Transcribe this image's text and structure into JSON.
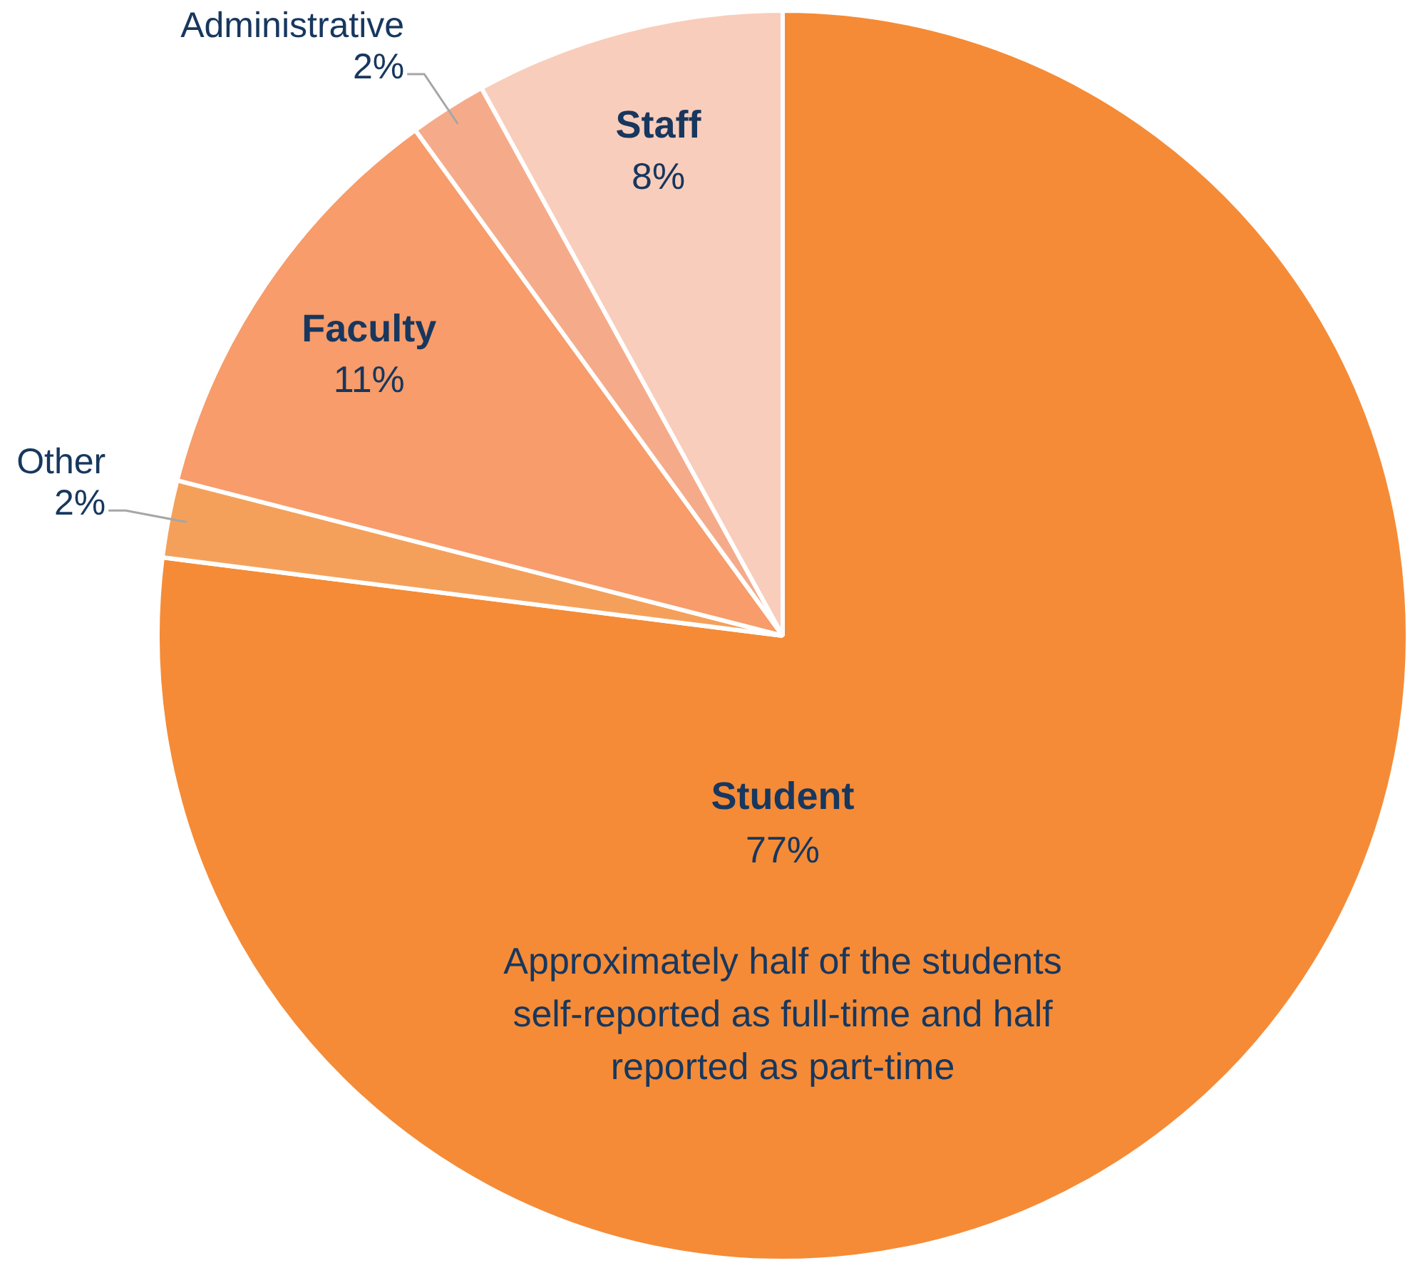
{
  "chart_data": {
    "type": "pie",
    "categories": [
      "Student",
      "Other",
      "Faculty",
      "Administrative",
      "Staff"
    ],
    "values": [
      77,
      2,
      11,
      2,
      8
    ],
    "colors": [
      "#f58b36",
      "#f5a05a",
      "#f79c6a",
      "#f5ab8a",
      "#f9cdbb"
    ],
    "value_labels": [
      "77%",
      "2%",
      "11%",
      "2%",
      "8%"
    ],
    "annotations": [
      "Approximately half of the students self-reported as full-time and half reported as part-time"
    ]
  }
}
